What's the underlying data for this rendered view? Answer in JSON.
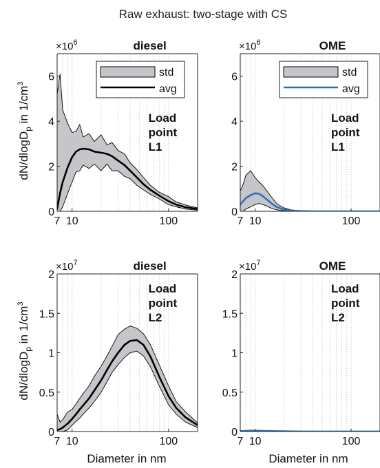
{
  "figure": {
    "title": "Raw exhaust: two-stage with CS"
  },
  "labels": {
    "ylabel_main": "dN/dlogD",
    "ylabel_sub": "p",
    "ylabel_tail": " in 1/cm",
    "ylabel_sup": "3",
    "xlabel": "Diameter in nm",
    "times": "×10",
    "exp_row1": "6",
    "exp_row2": "7"
  },
  "legend": {
    "std": "std",
    "avg": "avg"
  },
  "colors": {
    "diesel_avg": "#000000",
    "ome_avg": "#2f70b8",
    "std_fill": "#c4c6c9",
    "grid": "#c8c8c8"
  },
  "chart_data": [
    {
      "type": "area",
      "panel": "row1-left",
      "title": "diesel",
      "annotation": [
        "Load",
        "point",
        "L1"
      ],
      "xscale": "log",
      "xlim": [
        7,
        200
      ],
      "ylim": [
        0,
        7000000
      ],
      "xticks": [
        7,
        10,
        100
      ],
      "xticklabels": [
        "7",
        "10",
        "100"
      ],
      "yticks": [
        0,
        2000000,
        4000000,
        6000000
      ],
      "yticklabels": [
        "0",
        "2",
        "4",
        "6"
      ],
      "scale_exponent": "6",
      "legend": true,
      "x": [
        7,
        7.5,
        8,
        9,
        10,
        11,
        12,
        13,
        15,
        17,
        20,
        23,
        26,
        30,
        35,
        40,
        47,
        55,
        65,
        80,
        100,
        120,
        150,
        200
      ],
      "series": [
        {
          "name": "avg",
          "values": [
            100000,
            800000,
            1300000,
            1950000,
            2400000,
            2650000,
            2750000,
            2780000,
            2750000,
            2650000,
            2600000,
            2550000,
            2450000,
            2250000,
            2050000,
            1800000,
            1500000,
            1200000,
            950000,
            700000,
            450000,
            300000,
            180000,
            100000
          ]
        },
        {
          "name": "std_upper",
          "values": [
            5200000,
            6100000,
            4500000,
            3900000,
            3500000,
            3550000,
            3850000,
            3300000,
            3450000,
            3100000,
            3400000,
            2950000,
            3050000,
            2700000,
            2550000,
            2150000,
            1850000,
            1500000,
            1150000,
            850000,
            650000,
            420000,
            280000,
            150000
          ]
        },
        {
          "name": "std_lower",
          "values": [
            0,
            0,
            200000,
            800000,
            1300000,
            1750000,
            1800000,
            2050000,
            1900000,
            2100000,
            1800000,
            2100000,
            1800000,
            1800000,
            1550000,
            1450000,
            1150000,
            950000,
            750000,
            550000,
            300000,
            200000,
            100000,
            50000
          ]
        }
      ]
    },
    {
      "type": "area",
      "panel": "row1-right",
      "title": "OME",
      "annotation": [
        "Load",
        "point",
        "L1"
      ],
      "xscale": "log",
      "xlim": [
        7,
        200
      ],
      "ylim": [
        0,
        7000000
      ],
      "xticks": [
        7,
        10,
        100
      ],
      "xticklabels": [
        "7",
        "10",
        "100"
      ],
      "yticks": [
        0,
        2000000,
        4000000,
        6000000
      ],
      "yticklabels": [
        "0",
        "2",
        "4",
        "6"
      ],
      "scale_exponent": "6",
      "legend": true,
      "x": [
        7,
        7.5,
        8,
        9,
        10,
        11,
        12,
        13,
        15,
        17,
        20,
        23,
        26,
        30,
        35,
        40,
        47,
        55,
        65,
        80,
        100,
        120,
        150,
        200
      ],
      "series": [
        {
          "name": "avg",
          "values": [
            300000,
            450000,
            580000,
            720000,
            800000,
            780000,
            680000,
            550000,
            330000,
            180000,
            80000,
            40000,
            20000,
            10000,
            5000,
            0,
            0,
            0,
            0,
            0,
            0,
            0,
            0,
            0
          ]
        },
        {
          "name": "std_upper",
          "values": [
            900000,
            1200000,
            1600000,
            1800000,
            1500000,
            1300000,
            1150000,
            950000,
            600000,
            320000,
            150000,
            80000,
            40000,
            20000,
            10000,
            5000,
            0,
            0,
            0,
            0,
            0,
            0,
            0,
            0
          ]
        },
        {
          "name": "std_lower",
          "values": [
            0,
            0,
            100000,
            200000,
            300000,
            350000,
            300000,
            250000,
            120000,
            60000,
            20000,
            10000,
            5000,
            0,
            0,
            0,
            0,
            0,
            0,
            0,
            0,
            0,
            0,
            0
          ]
        }
      ]
    },
    {
      "type": "area",
      "panel": "row2-left",
      "title": "diesel",
      "annotation": [
        "Load",
        "point",
        "L2"
      ],
      "xscale": "log",
      "xlim": [
        7,
        200
      ],
      "ylim": [
        0,
        20000000
      ],
      "xticks": [
        7,
        10,
        100
      ],
      "xticklabels": [
        "7",
        "10",
        "100"
      ],
      "yticks": [
        0,
        5000000,
        10000000,
        15000000,
        20000000
      ],
      "yticklabels": [
        "0",
        "0.5",
        "1",
        "1.5",
        "2"
      ],
      "scale_exponent": "7",
      "legend": false,
      "x": [
        7,
        7.5,
        8,
        9,
        10,
        11,
        12,
        13,
        15,
        17,
        20,
        23,
        26,
        30,
        35,
        40,
        47,
        55,
        65,
        80,
        100,
        120,
        150,
        200
      ],
      "series": [
        {
          "name": "avg",
          "values": [
            200000,
            300000,
            500000,
            1000000,
            1600000,
            2200000,
            2800000,
            3300000,
            4200000,
            5200000,
            6500000,
            7800000,
            8900000,
            10000000,
            11000000,
            11500000,
            11600000,
            11000000,
            9500000,
            7000000,
            4500000,
            3000000,
            1800000,
            800000
          ]
        },
        {
          "name": "std_upper",
          "values": [
            2200000,
            1200000,
            1500000,
            2500000,
            2800000,
            3500000,
            4200000,
            4800000,
            5800000,
            7000000,
            8300000,
            9600000,
            10800000,
            12300000,
            13000000,
            13400000,
            13100000,
            12400000,
            11000000,
            8500000,
            5800000,
            3800000,
            2500000,
            1100000
          ]
        },
        {
          "name": "std_lower",
          "values": [
            0,
            0,
            0,
            200000,
            800000,
            1300000,
            1700000,
            2200000,
            3000000,
            3800000,
            5000000,
            6300000,
            7500000,
            8500000,
            9400000,
            10000000,
            10200000,
            9600000,
            8200000,
            5800000,
            3400000,
            2200000,
            1200000,
            500000
          ]
        }
      ]
    },
    {
      "type": "area",
      "panel": "row2-right",
      "title": "OME",
      "annotation": [
        "Load",
        "point",
        "L2"
      ],
      "xscale": "log",
      "xlim": [
        7,
        200
      ],
      "ylim": [
        0,
        20000000
      ],
      "xticks": [
        7,
        10,
        100
      ],
      "xticklabels": [
        "7",
        "10",
        "100"
      ],
      "yticks": [
        0,
        5000000,
        10000000,
        15000000,
        20000000
      ],
      "yticklabels": [
        "0",
        "0.5",
        "1",
        "1.5",
        "2"
      ],
      "scale_exponent": "7",
      "legend": false,
      "x": [
        7,
        7.5,
        8,
        9,
        10,
        11,
        12,
        13,
        15,
        17,
        20,
        23,
        26,
        30,
        35,
        40,
        47,
        55,
        65,
        80,
        100,
        120,
        150,
        200
      ],
      "series": [
        {
          "name": "avg",
          "values": [
            50000,
            60000,
            80000,
            100000,
            100000,
            90000,
            80000,
            70000,
            60000,
            50000,
            40000,
            30000,
            20000,
            10000,
            10000,
            10000,
            10000,
            10000,
            10000,
            10000,
            10000,
            10000,
            10000,
            10000
          ]
        },
        {
          "name": "std_upper",
          "values": [
            120000,
            130000,
            150000,
            180000,
            170000,
            150000,
            130000,
            110000,
            90000,
            70000,
            60000,
            50000,
            40000,
            30000,
            30000,
            30000,
            30000,
            30000,
            30000,
            30000,
            30000,
            30000,
            30000,
            30000
          ]
        },
        {
          "name": "std_lower",
          "values": [
            0,
            0,
            0,
            20000,
            30000,
            30000,
            30000,
            30000,
            30000,
            20000,
            20000,
            10000,
            0,
            0,
            0,
            0,
            0,
            0,
            0,
            0,
            0,
            0,
            0,
            0
          ]
        }
      ]
    }
  ]
}
